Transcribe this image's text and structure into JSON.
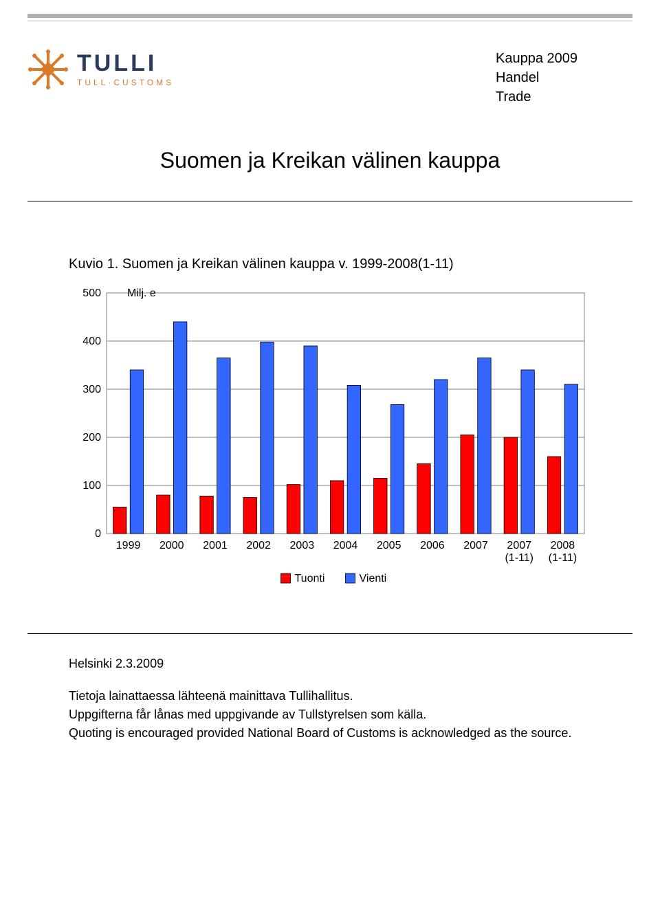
{
  "header": {
    "logo_word": "TULLI",
    "logo_sub": "TULL·CUSTOMS",
    "meta_lines": [
      "Kauppa 2009",
      "Handel",
      "Trade"
    ]
  },
  "title": "Suomen ja Kreikan välinen kauppa",
  "chart": {
    "caption": "Kuvio 1. Suomen ja Kreikan välinen kauppa v. 1999-2008(1-11)",
    "type": "bar",
    "y_axis_title": "Milj. e",
    "ylim": [
      0,
      500
    ],
    "ytick_step": 100,
    "categories": [
      "1999",
      "2000",
      "2001",
      "2002",
      "2003",
      "2004",
      "2005",
      "2006",
      "2007",
      "2007\n(1-11)",
      "2008\n(1-11)"
    ],
    "series": [
      {
        "name": "Tuonti",
        "color": "#ff0000",
        "values": [
          55,
          80,
          78,
          75,
          102,
          110,
          115,
          145,
          205,
          200,
          160
        ]
      },
      {
        "name": "Vienti",
        "color": "#3366ff",
        "values": [
          340,
          440,
          365,
          398,
          390,
          308,
          268,
          320,
          365,
          340,
          310
        ]
      }
    ],
    "plot_bg": "#ffffff",
    "border_color": "#808080",
    "grid_color": "#808080",
    "bar_border": "#000000",
    "bar_border_width": 0.8,
    "axis_label_fontsize": 16,
    "legend_fontsize": 16,
    "group_gap_ratio": 0.3,
    "bar_gap_ratio": 0.12
  },
  "footer": {
    "date": "Helsinki 2.3.2009",
    "lines": [
      "Tietoja lainattaessa lähteenä mainittava Tullihallitus.",
      "Uppgifterna får lånas med uppgivande av Tullstyrelsen som källa.",
      "Quoting is encouraged provided National Board of Customs is acknowledged as the source."
    ]
  }
}
